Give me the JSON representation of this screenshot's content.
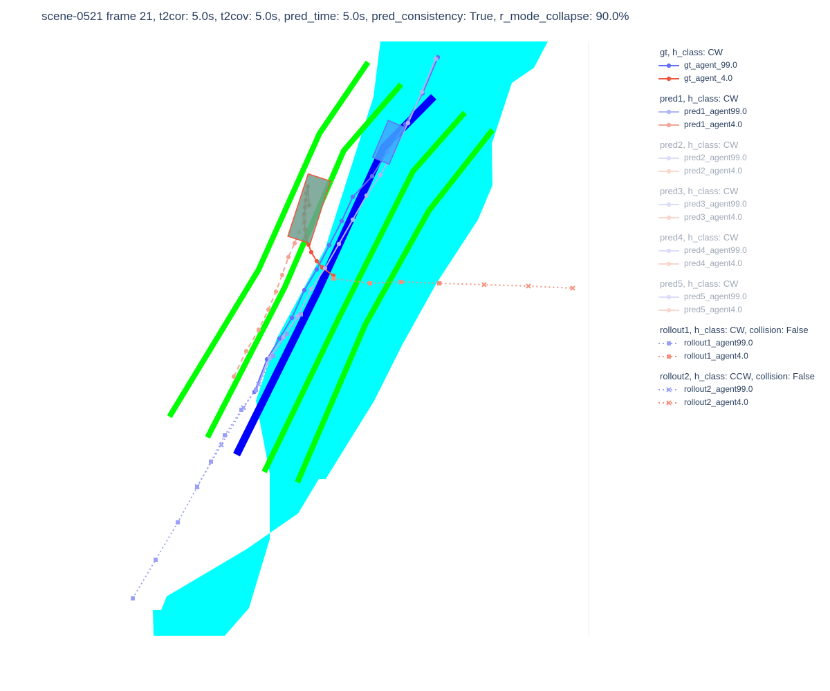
{
  "title": "scene-0521 frame 21, t2cor: 5.0s, t2cov: 5.0s, pred_time: 5.0s, pred_consistency: True, r_mode_collapse: 90.0%",
  "colors": {
    "drivable": "#00ffff",
    "lane_divider": "#00ff00",
    "ego_lane": "#0000ff",
    "agent99": "#636efa",
    "agent4": "#ef553b",
    "agent99_box": "#3fa7ff",
    "agent4_box": "#6e9f8f"
  },
  "legend": [
    {
      "title": "gt, h_class: CW",
      "faded": false,
      "items": [
        {
          "label": "gt_agent_99.0",
          "color": "#636efa",
          "symbol": "circle",
          "dash": "solid"
        },
        {
          "label": "gt_agent_4.0",
          "color": "#ef553b",
          "symbol": "circle",
          "dash": "solid"
        }
      ]
    },
    {
      "title": "pred1, h_class: CW",
      "faded": false,
      "items": [
        {
          "label": "pred1_agent99.0",
          "color": "#b0b5f7",
          "symbol": "circle",
          "dash": "solid"
        },
        {
          "label": "pred1_agent4.0",
          "color": "#f2a595",
          "symbol": "circle",
          "dash": "solid"
        }
      ]
    },
    {
      "title": "pred2, h_class: CW",
      "faded": true,
      "items": [
        {
          "label": "pred2_agent99.0",
          "color": "#b0b5f7",
          "symbol": "circle",
          "dash": "solid"
        },
        {
          "label": "pred2_agent4.0",
          "color": "#f2a595",
          "symbol": "circle",
          "dash": "solid"
        }
      ]
    },
    {
      "title": "pred3, h_class: CW",
      "faded": true,
      "items": [
        {
          "label": "pred3_agent99.0",
          "color": "#b0b5f7",
          "symbol": "circle",
          "dash": "solid"
        },
        {
          "label": "pred3_agent4.0",
          "color": "#f2a595",
          "symbol": "circle",
          "dash": "solid"
        }
      ]
    },
    {
      "title": "pred4, h_class: CW",
      "faded": true,
      "items": [
        {
          "label": "pred4_agent99.0",
          "color": "#b0b5f7",
          "symbol": "circle",
          "dash": "solid"
        },
        {
          "label": "pred4_agent4.0",
          "color": "#f2a595",
          "symbol": "circle",
          "dash": "solid"
        }
      ]
    },
    {
      "title": "pred5, h_class: CW",
      "faded": true,
      "items": [
        {
          "label": "pred5_agent99.0",
          "color": "#b0b5f7",
          "symbol": "circle",
          "dash": "solid"
        },
        {
          "label": "pred5_agent4.0",
          "color": "#f2a595",
          "symbol": "circle",
          "dash": "solid"
        }
      ]
    },
    {
      "title": "rollout1, h_class: CW, collision: False",
      "faded": false,
      "items": [
        {
          "label": "rollout1_agent99.0",
          "color": "#9aa0f8",
          "symbol": "square",
          "dash": "dot"
        },
        {
          "label": "rollout1_agent4.0",
          "color": "#f58f7c",
          "symbol": "square",
          "dash": "dot"
        }
      ]
    },
    {
      "title": "rollout2, h_class: CCW, collision: False",
      "faded": false,
      "items": [
        {
          "label": "rollout2_agent99.0",
          "color": "#9aa0f8",
          "symbol": "x",
          "dash": "dot"
        },
        {
          "label": "rollout2_agent4.0",
          "color": "#f58f7c",
          "symbol": "x",
          "dash": "dot"
        }
      ]
    }
  ],
  "chart_data": {
    "type": "scatter",
    "title": "scene-0521 frame 21, t2cor: 5.0s, t2cov: 5.0s, pred_time: 5.0s, pred_consistency: True, r_mode_collapse: 90.0%",
    "xlabel": "",
    "ylabel": "",
    "xlim": [
      0,
      691
    ],
    "ylim": [
      0,
      860
    ],
    "grid": false,
    "legend_position": "right",
    "map_layers": [
      {
        "name": "drivable area",
        "color": "#00ffff",
        "polygon": [
          [
            0,
            0
          ],
          [
            165,
            0
          ],
          [
            200,
            40
          ],
          [
            230,
            140
          ],
          [
            230,
            235
          ],
          [
            210,
            340
          ],
          [
            240,
            430
          ],
          [
            310,
            560
          ],
          [
            380,
            780
          ],
          [
            390,
            860
          ],
          [
            632,
            860
          ],
          [
            612,
            822
          ],
          [
            580,
            800
          ],
          [
            551,
            712
          ],
          [
            552,
            652
          ],
          [
            531,
            602
          ],
          [
            471,
            510
          ],
          [
            421,
            420
          ],
          [
            381,
            340
          ],
          [
            311,
            227
          ],
          [
            301,
            227
          ],
          [
            271,
            177
          ],
          [
            196,
            125
          ],
          [
            81,
            57
          ],
          [
            73,
            37
          ],
          [
            61,
            37
          ],
          [
            62,
            0
          ]
        ]
      },
      {
        "name": "lane_divider_1",
        "color": "#00ff00",
        "points": [
          [
            85,
            317
          ],
          [
            214,
            530
          ],
          [
            302,
            727
          ],
          [
            372,
            830
          ]
        ]
      },
      {
        "name": "lane_divider_2",
        "color": "#00ff00",
        "points": [
          [
            140,
            287
          ],
          [
            252,
            505
          ],
          [
            337,
            702
          ],
          [
            420,
            798
          ]
        ]
      },
      {
        "name": "ego_lane",
        "color": "#0000ff",
        "points": [
          [
            182,
            262
          ],
          [
            300,
            500
          ],
          [
            395,
            707
          ],
          [
            467,
            780
          ]
        ]
      },
      {
        "name": "lane_divider_3",
        "color": "#00ff00",
        "points": [
          [
            222,
            237
          ],
          [
            330,
            460
          ],
          [
            437,
            672
          ],
          [
            512,
            757
          ]
        ]
      },
      {
        "name": "lane_divider_4",
        "color": "#00ff00",
        "points": [
          [
            270,
            222
          ],
          [
            368,
            450
          ],
          [
            460,
            615
          ],
          [
            552,
            732
          ]
        ]
      }
    ],
    "series": [
      {
        "name": "gt_agent_99.0",
        "color": "#636efa",
        "dash": "solid",
        "symbol": "circle",
        "x": [
          208,
          226,
          244,
          262,
          280,
          298,
          316,
          334,
          350,
          378,
          400,
          426,
          451,
          473
        ],
        "y": [
          353,
          400,
          430,
          460,
          500,
          530,
          565,
          600,
          635,
          665,
          700,
          740,
          785,
          837
        ]
      },
      {
        "name": "gt_agent_4.0",
        "color": "#ef553b",
        "dash": "solid",
        "symbol": "circle",
        "x": [
          322,
          306,
          298,
          290,
          286,
          282,
          281,
          280,
          280,
          281,
          282,
          283,
          285,
          287
        ],
        "y": [
          521,
          533,
          542,
          555,
          566,
          577,
          588,
          599,
          610,
          620,
          630,
          640,
          650,
          623
        ]
      },
      {
        "name": "pred1_agent99.0",
        "color": "#b0b5f7",
        "dash": "solid",
        "symbol": "circle",
        "x": [
          210,
          230,
          250,
          270,
          290,
          310,
          330,
          350,
          370,
          390,
          410,
          430,
          450,
          470
        ],
        "y": [
          355,
          402,
          432,
          462,
          502,
          532,
          567,
          602,
          637,
          667,
          702,
          742,
          787,
          835
        ]
      },
      {
        "name": "pred1_agent4.0",
        "color": "#f2a595",
        "dash": "dash",
        "symbol": "circle",
        "x": [
          178,
          196,
          214,
          228,
          239,
          248,
          257,
          266,
          272,
          280
        ],
        "y": [
          375,
          412,
          443,
          472,
          498,
          522,
          548,
          568,
          584,
          605
        ]
      },
      {
        "name": "rollout1_agent99.0",
        "color": "#9aa0f8",
        "dash": "dot",
        "symbol": "square",
        "x": [
          32,
          65,
          97,
          125,
          145,
          165,
          189,
          210,
          235,
          255,
          275
        ],
        "y": [
          54,
          110,
          164,
          215,
          252,
          290,
          327,
          356,
          405,
          437,
          465
        ]
      },
      {
        "name": "rollout1_agent4.0",
        "color": "#f58f7c",
        "dash": "dot",
        "symbol": "square",
        "x": [
          322,
          375,
          420,
          475
        ],
        "y": [
          517,
          510,
          512,
          510
        ]
      },
      {
        "name": "rollout2_agent99.0",
        "color": "#9aa0f8",
        "dash": "dot",
        "symbol": "x",
        "x": [
          125,
          160,
          192,
          214
        ],
        "y": [
          216,
          276,
          330,
          364
        ]
      },
      {
        "name": "rollout2_agent4.0",
        "color": "#f58f7c",
        "dash": "dot",
        "symbol": "x",
        "x": [
          322,
          375,
          420,
          475,
          540,
          604,
          668
        ],
        "y": [
          517,
          510,
          512,
          510,
          508,
          506,
          503
        ]
      }
    ],
    "agent_boxes": [
      {
        "name": "agent_99.0",
        "color": "#3fa7ff",
        "center": [
          402,
          714
        ],
        "length": 58,
        "width": 26,
        "angle_deg": -67
      },
      {
        "name": "agent_4.0",
        "color": "#6e9f8f",
        "center": [
          287,
          618
        ],
        "length": 95,
        "width": 34,
        "angle_deg": -72
      }
    ]
  }
}
